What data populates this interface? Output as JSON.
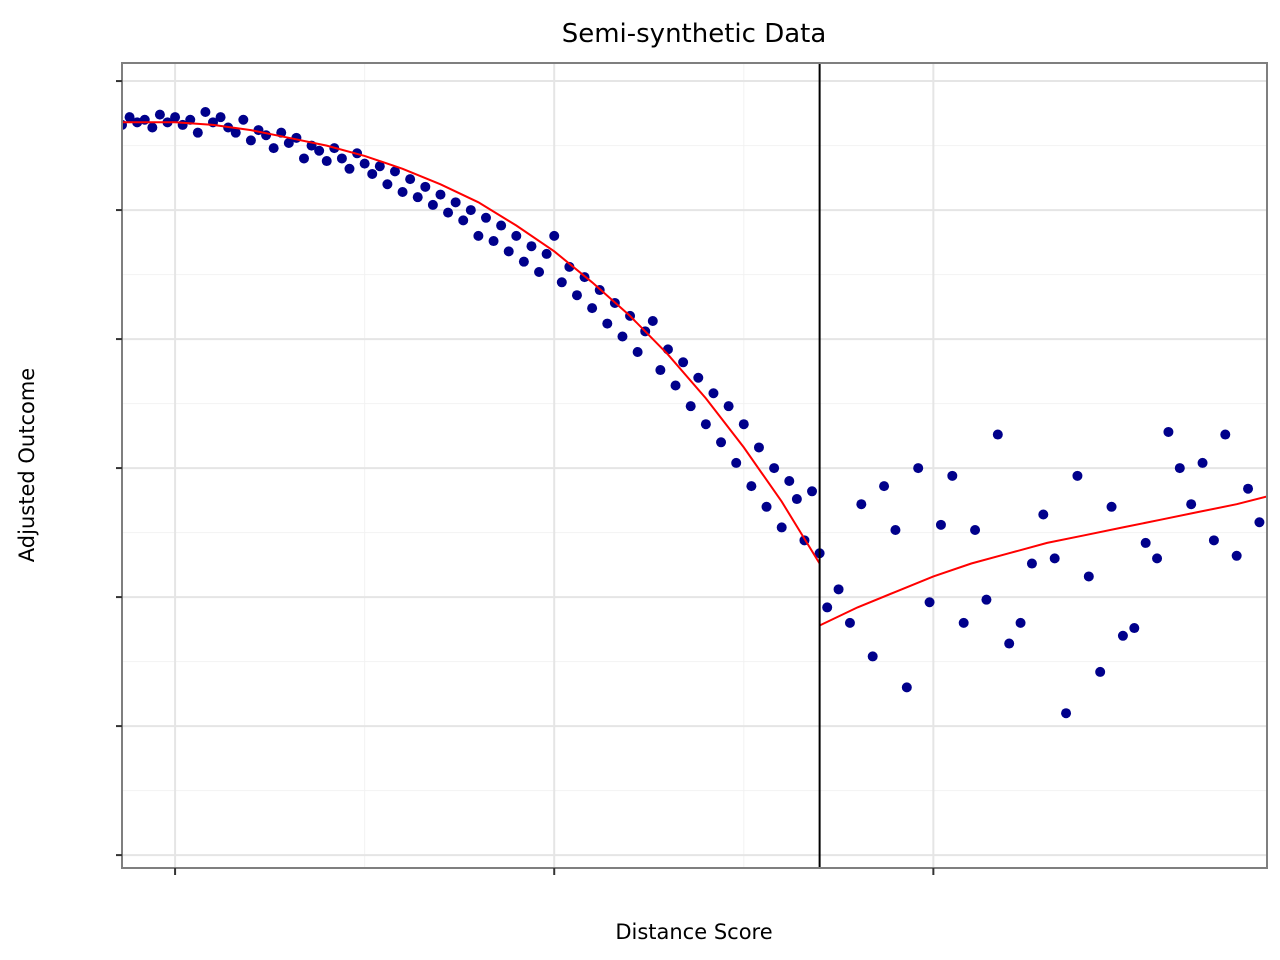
{
  "chart_data": {
    "type": "scatter",
    "title": "Semi-synthetic Data",
    "xlabel": "Distance Score",
    "ylabel": "Adjusted Outcome",
    "x_tick_labels_visible": false,
    "y_tick_labels_visible": false,
    "xlim": [
      -0.14,
      2.88
    ],
    "ylim": [
      -0.05,
      3.07
    ],
    "x_major_ticks": [
      0,
      1,
      2
    ],
    "y_major_ticks": [
      0,
      0.5,
      1,
      1.5,
      2,
      2.5,
      3
    ],
    "grid": true,
    "cutoff_x": 1.7,
    "colors": {
      "points": "#00008b",
      "fit": "#ff0000",
      "cutoff": "#000000",
      "grid": "#e5e5e5",
      "panel_border": "#7f7f7f"
    },
    "series": [
      {
        "kind": "points",
        "x": [
          -0.14,
          -0.12,
          -0.1,
          -0.08,
          -0.06,
          -0.04,
          -0.02,
          0,
          0.02,
          0.04,
          0.06,
          0.08,
          0.1,
          0.12,
          0.14,
          0.16,
          0.18,
          0.2,
          0.22,
          0.24,
          0.26,
          0.28,
          0.3,
          0.32,
          0.34,
          0.36,
          0.38,
          0.4,
          0.42,
          0.44,
          0.46,
          0.48,
          0.5,
          0.52,
          0.54,
          0.56,
          0.58,
          0.6,
          0.62,
          0.64,
          0.66,
          0.68,
          0.7,
          0.72,
          0.74,
          0.76,
          0.78,
          0.8,
          0.82,
          0.84,
          0.86,
          0.88,
          0.9,
          0.92,
          0.94,
          0.96,
          0.98,
          1.0,
          1.02,
          1.04,
          1.06,
          1.08,
          1.1,
          1.12,
          1.14,
          1.16,
          1.18,
          1.2,
          1.22,
          1.24,
          1.26,
          1.28,
          1.3,
          1.32,
          1.34,
          1.36,
          1.38,
          1.4,
          1.42,
          1.44,
          1.46,
          1.48,
          1.5,
          1.52,
          1.54,
          1.56,
          1.58,
          1.6,
          1.62,
          1.64,
          1.66,
          1.68,
          1.7,
          1.72,
          1.75,
          1.78,
          1.81,
          1.84,
          1.87,
          1.9,
          1.93,
          1.96,
          1.99,
          2.02,
          2.05,
          2.08,
          2.11,
          2.14,
          2.17,
          2.2,
          2.23,
          2.26,
          2.29,
          2.32,
          2.35,
          2.38,
          2.41,
          2.44,
          2.47,
          2.5,
          2.53,
          2.56,
          2.59,
          2.62,
          2.65,
          2.68,
          2.71,
          2.74,
          2.77,
          2.8,
          2.83,
          2.86
        ],
        "y": [
          2.83,
          2.86,
          2.84,
          2.85,
          2.82,
          2.87,
          2.84,
          2.86,
          2.83,
          2.85,
          2.8,
          2.88,
          2.84,
          2.86,
          2.82,
          2.8,
          2.85,
          2.77,
          2.81,
          2.79,
          2.74,
          2.8,
          2.76,
          2.78,
          2.7,
          2.75,
          2.73,
          2.69,
          2.74,
          2.7,
          2.66,
          2.72,
          2.68,
          2.64,
          2.67,
          2.6,
          2.65,
          2.57,
          2.62,
          2.55,
          2.59,
          2.52,
          2.56,
          2.49,
          2.53,
          2.46,
          2.5,
          2.4,
          2.47,
          2.38,
          2.44,
          2.34,
          2.4,
          2.3,
          2.36,
          2.26,
          2.33,
          2.4,
          2.22,
          2.28,
          2.17,
          2.24,
          2.12,
          2.19,
          2.06,
          2.14,
          2.01,
          2.09,
          1.95,
          2.03,
          2.07,
          1.88,
          1.96,
          1.82,
          1.91,
          1.74,
          1.85,
          1.67,
          1.79,
          1.6,
          1.74,
          1.52,
          1.67,
          1.43,
          1.58,
          1.35,
          1.5,
          1.27,
          1.45,
          1.38,
          1.22,
          1.41,
          1.17,
          0.96,
          1.03,
          0.9,
          1.36,
          0.77,
          1.43,
          1.26,
          0.65,
          1.5,
          0.98,
          1.28,
          1.47,
          0.9,
          1.26,
          0.99,
          1.63,
          0.82,
          0.9,
          1.13,
          1.32,
          1.15,
          0.55,
          1.47,
          1.08,
          0.71,
          1.35,
          0.85,
          0.88,
          1.21,
          1.15,
          1.64,
          1.5,
          1.36,
          1.52,
          1.22,
          1.63,
          1.16,
          1.42,
          1.29
        ]
      },
      {
        "kind": "fit-left",
        "x": [
          -0.14,
          0.0,
          0.1,
          0.2,
          0.3,
          0.4,
          0.5,
          0.6,
          0.7,
          0.8,
          0.9,
          1.0,
          1.1,
          1.2,
          1.3,
          1.4,
          1.5,
          1.6,
          1.7
        ],
        "y": [
          2.84,
          2.84,
          2.83,
          2.81,
          2.78,
          2.75,
          2.71,
          2.66,
          2.6,
          2.53,
          2.44,
          2.34,
          2.22,
          2.09,
          1.94,
          1.77,
          1.58,
          1.37,
          1.13
        ]
      },
      {
        "kind": "fit-right",
        "x": [
          1.7,
          1.8,
          1.9,
          2.0,
          2.1,
          2.2,
          2.3,
          2.4,
          2.5,
          2.6,
          2.7,
          2.8,
          2.88
        ],
        "y": [
          0.89,
          0.96,
          1.02,
          1.08,
          1.13,
          1.17,
          1.21,
          1.24,
          1.27,
          1.3,
          1.33,
          1.36,
          1.39
        ]
      }
    ]
  }
}
